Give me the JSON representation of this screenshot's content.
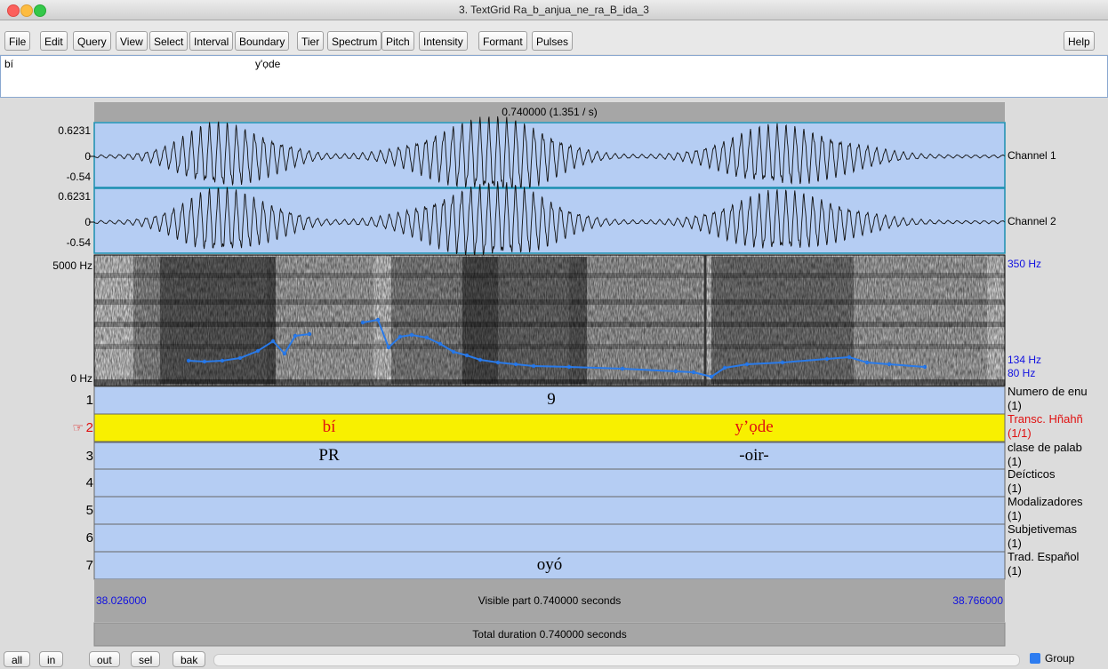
{
  "window": {
    "title": "3. TextGrid Ra_b_anjua_ne_ra_B_ida_3"
  },
  "menu": [
    "File",
    "Edit",
    "Query",
    "View",
    "Select",
    "Interval",
    "Boundary",
    "Tier",
    "Spectrum",
    "Pitch",
    "Intensity",
    "Formant",
    "Pulses"
  ],
  "help": "Help",
  "text_field": [
    "bí",
    "y'ọde"
  ],
  "selection_header": "0.740000 (1.351 / s)",
  "channels": [
    {
      "name": "Channel 1",
      "max": "0.6231",
      "zero": "0",
      "min": "-0.54"
    },
    {
      "name": "Channel 2",
      "max": "0.6231",
      "zero": "0",
      "min": "-0.54"
    }
  ],
  "spectrogram": {
    "top": "5000 Hz",
    "bottom": "0 Hz",
    "pitch_top": "350 Hz",
    "pitch_mid": "134 Hz",
    "pitch_bottom": "80 Hz"
  },
  "selected_marker": "☞",
  "tiers": [
    {
      "number": "1",
      "name": "Numero de enu",
      "count": "(1)",
      "intervals": [
        "9"
      ]
    },
    {
      "number": "2",
      "name": "Transc. Hñahñ",
      "count": "(1/1)",
      "intervals": [
        "bí",
        "y’ọde"
      ]
    },
    {
      "number": "3",
      "name": "clase de palab",
      "count": "(1)",
      "intervals": [
        "PR",
        "-oir-"
      ]
    },
    {
      "number": "4",
      "name": "Deícticos",
      "count": "(1)",
      "intervals": []
    },
    {
      "number": "5",
      "name": "Modalizadores",
      "count": "(1)",
      "intervals": []
    },
    {
      "number": "6",
      "name": "Subjetivemas",
      "count": "(1)",
      "intervals": []
    },
    {
      "number": "7",
      "name": "Trad. Español",
      "count": "(1)",
      "intervals": [
        "oyó"
      ]
    }
  ],
  "footer": {
    "start": "38.026000",
    "visible": "Visible part 0.740000 seconds",
    "end": "38.766000",
    "total": "Total duration 0.740000 seconds"
  },
  "buttons": [
    "all",
    "in",
    "out",
    "sel",
    "bak"
  ],
  "group": "Group"
}
